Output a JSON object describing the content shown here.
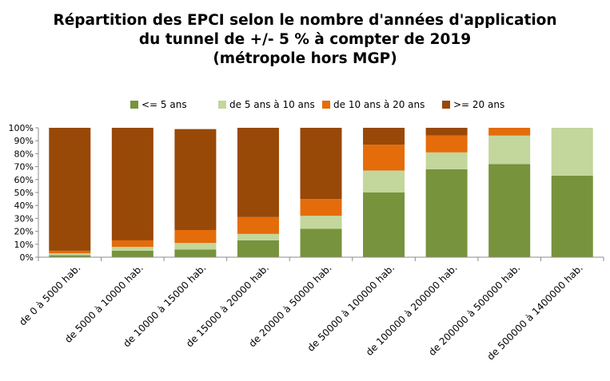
{
  "chart_data": {
    "type": "bar",
    "stacked": true,
    "title_lines": [
      "Répartition des EPCI selon le nombre d'années d'application",
      "du tunnel de +/- 5 % à compter de 2019",
      "(métropole hors MGP)"
    ],
    "xlabel": "",
    "ylabel": "",
    "ylim": [
      0,
      100
    ],
    "yticks": [
      "0%",
      "10%",
      "20%",
      "30%",
      "40%",
      "50%",
      "60%",
      "70%",
      "80%",
      "90%",
      "100%"
    ],
    "legend_position": "top",
    "grid": false,
    "categories": [
      "de 0 à 5000 hab.",
      "de 5000 à 10000 hab.",
      "de 10000 à 15000 hab.",
      "de 15000 à 20000 hab.",
      "de 20000 à 50000 hab.",
      "de 50000 à 100000 hab.",
      "de 100000 à 200000 hab.",
      "de 200000 à 500000 hab.",
      "de 500000 à 1400000 hab."
    ],
    "series": [
      {
        "name": "<= 5 ans",
        "color": "#77933c",
        "values": [
          1.5,
          5,
          6,
          13,
          22,
          50,
          68,
          72,
          63
        ]
      },
      {
        "name": "de 5 ans à 10 ans",
        "color": "#c3d69b",
        "values": [
          1.5,
          3,
          5,
          5,
          10,
          17,
          13,
          22,
          37
        ]
      },
      {
        "name": "de 10 ans à 20 ans",
        "color": "#e46c0a",
        "values": [
          2,
          5,
          10,
          13,
          13,
          20,
          13,
          6,
          0
        ]
      },
      {
        "name": ">= 20 ans",
        "color": "#984807",
        "values": [
          95,
          87,
          78,
          69,
          55,
          13,
          6,
          0,
          0
        ]
      }
    ]
  }
}
